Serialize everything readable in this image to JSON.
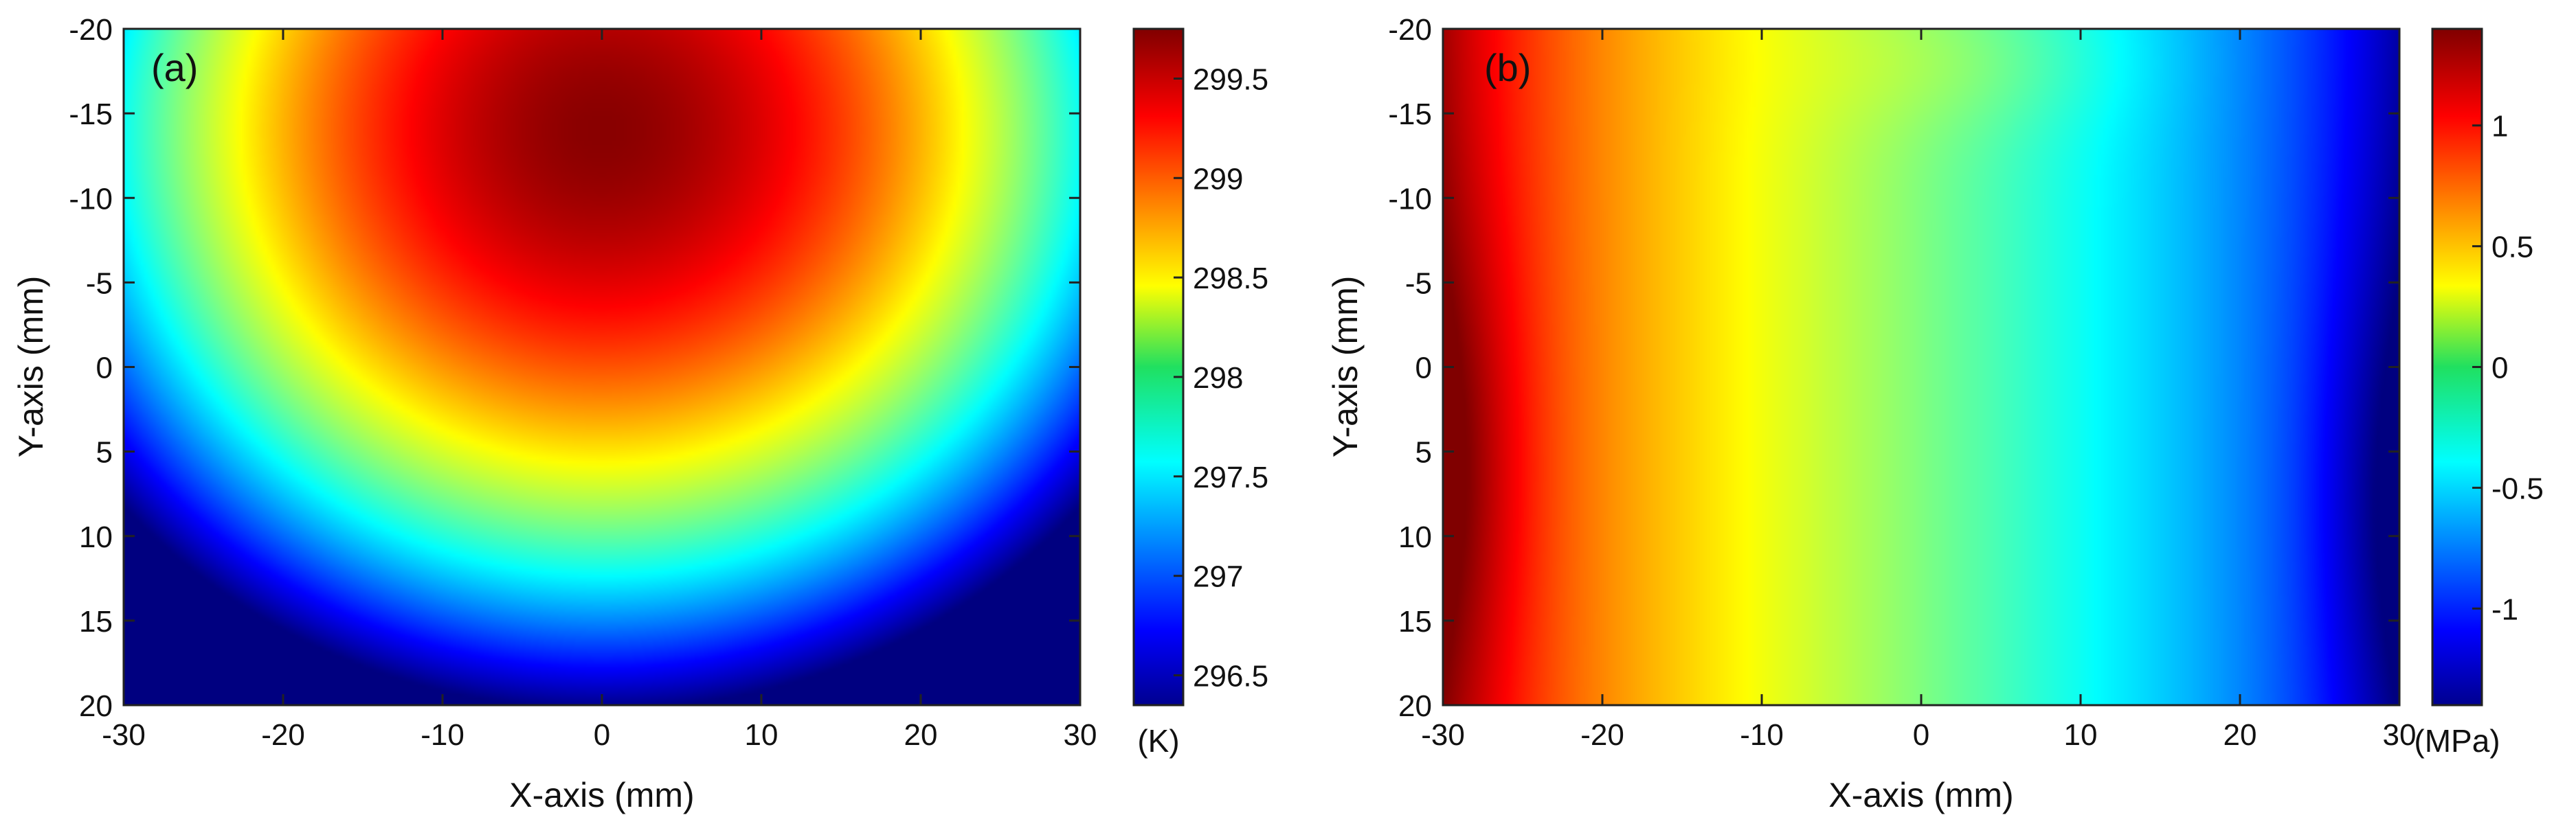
{
  "chart_data": [
    {
      "type": "heatmap",
      "panel_label": "(a)",
      "xlabel": "X-axis (mm)",
      "ylabel": "Y-axis (mm)",
      "xlim": [
        -30,
        30
      ],
      "ylim": [
        -20,
        20
      ],
      "y_direction": "reversed",
      "x_ticks": [
        -30,
        -20,
        -10,
        0,
        10,
        20,
        30
      ],
      "y_ticks": [
        -20,
        -15,
        -10,
        -5,
        0,
        5,
        10,
        15,
        20
      ],
      "colorbar": {
        "unit": "(K)",
        "range": [
          296.35,
          299.75
        ],
        "ticks": [
          296.5,
          297,
          297.5,
          298,
          298.5,
          299,
          299.5
        ],
        "colormap": "jet"
      },
      "field": {
        "quantity": "temperature",
        "description": "Hot spot centered near x=0, y=-14 falling off radially toward the lower edge",
        "peak_value": 299.72,
        "peak_location": [
          0,
          -14
        ],
        "min_value": 296.4
      }
    },
    {
      "type": "heatmap",
      "panel_label": "(b)",
      "xlabel": "X-axis (mm)",
      "ylabel": "Y-axis (mm)",
      "xlim": [
        -30,
        30
      ],
      "ylim": [
        -20,
        20
      ],
      "y_direction": "reversed",
      "x_ticks": [
        -30,
        -20,
        -10,
        0,
        10,
        20,
        30
      ],
      "y_ticks": [
        -20,
        -15,
        -10,
        -5,
        0,
        5,
        10,
        15,
        20
      ],
      "colorbar": {
        "unit": "(MPa)",
        "range": [
          -1.4,
          1.4
        ],
        "ticks": [
          -1,
          -0.5,
          0,
          0.5,
          1
        ],
        "colormap": "jet"
      },
      "field": {
        "quantity": "stress",
        "description": "Positive stress on the left edge, negative on the right edge, near zero in the middle",
        "max_value": 1.4,
        "max_location": [
          -30,
          6
        ],
        "min_value": -1.4,
        "min_location": [
          30,
          8
        ]
      }
    }
  ]
}
